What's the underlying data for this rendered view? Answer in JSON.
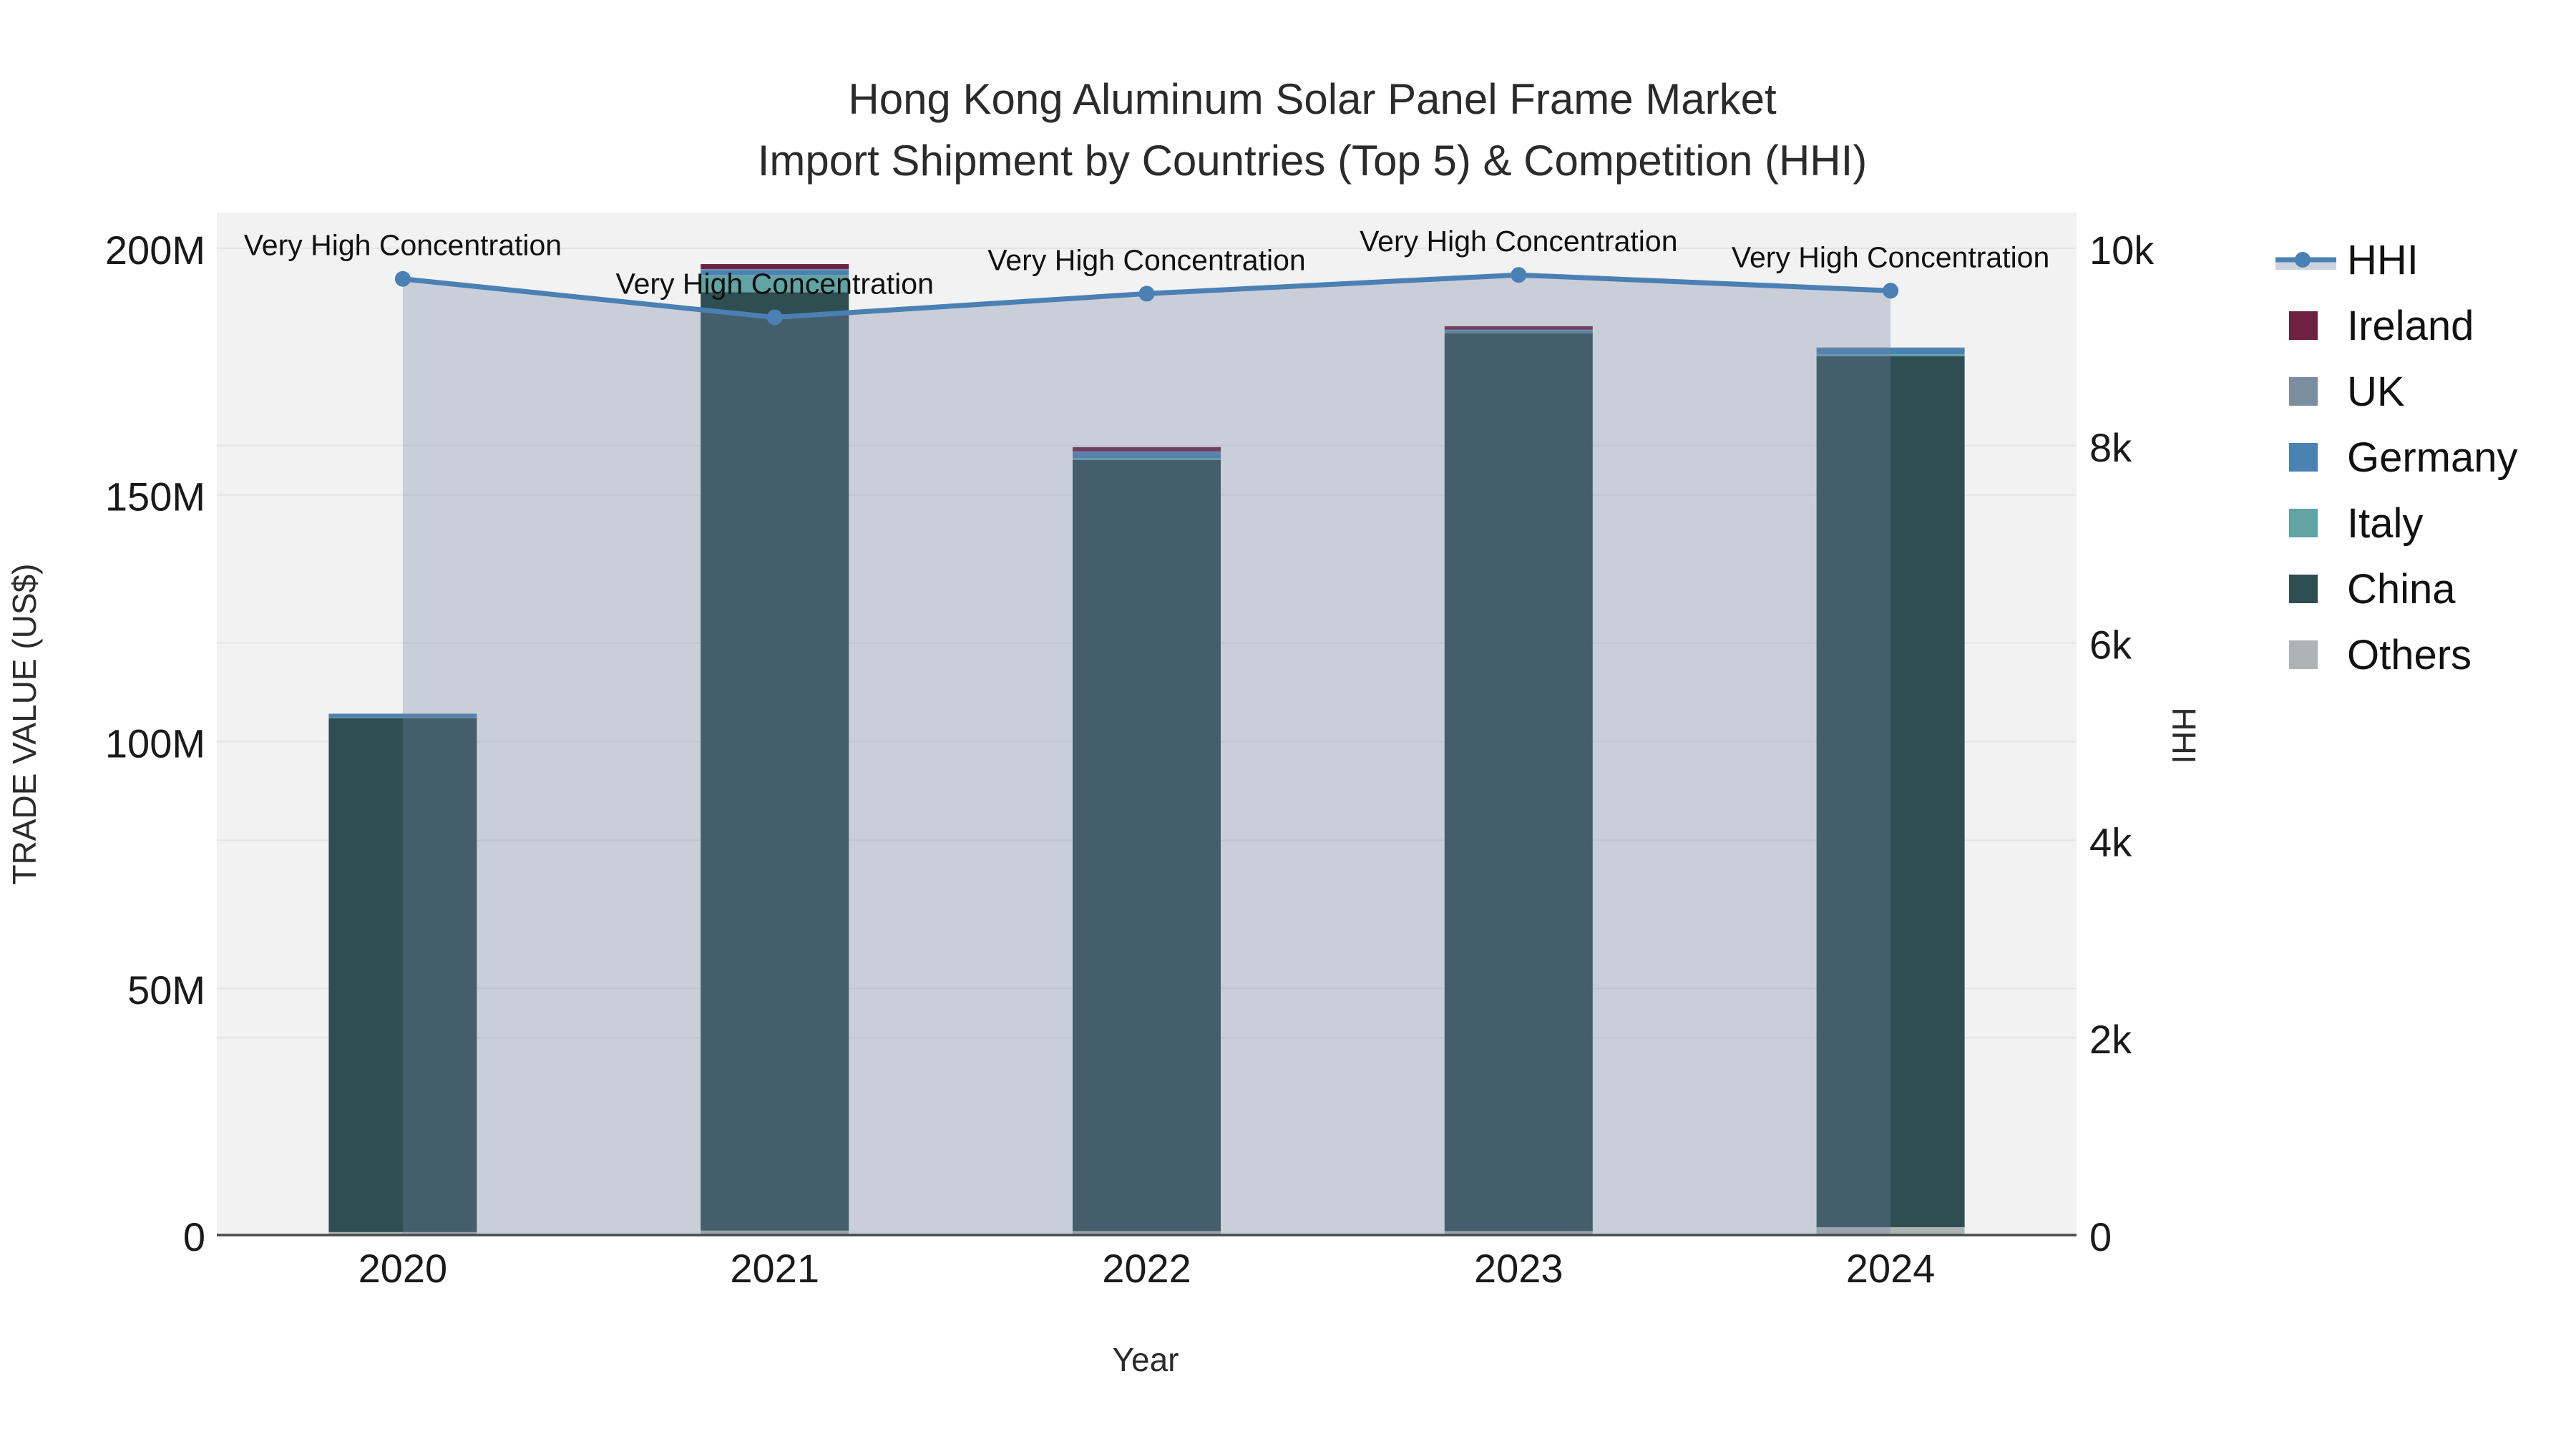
{
  "title": {
    "line1": "Hong Kong Aluminum Solar Panel Frame Market",
    "line2": "Import Shipment by Countries (Top 5) & Competition (HHI)"
  },
  "axes": {
    "left_title": "TRADE VALUE (US$)",
    "right_title": "HHI",
    "x_title": "Year",
    "yticks_left": [
      {
        "label": "0",
        "value": 0
      },
      {
        "label": "50M",
        "value": 50
      },
      {
        "label": "100M",
        "value": 100
      },
      {
        "label": "150M",
        "value": 150
      },
      {
        "label": "200M",
        "value": 200
      }
    ],
    "yticks_right": [
      {
        "label": "0",
        "value": 0
      },
      {
        "label": "2k",
        "value": 2000
      },
      {
        "label": "4k",
        "value": 4000
      },
      {
        "label": "6k",
        "value": 6000
      },
      {
        "label": "8k",
        "value": 8000
      },
      {
        "label": "10k",
        "value": 10000
      }
    ]
  },
  "legend": {
    "items": [
      {
        "label": "HHI",
        "type": "line",
        "color": "#4a80b4",
        "band": "#ccd3dd"
      },
      {
        "label": "Ireland",
        "type": "swatch",
        "color": "#6e2243"
      },
      {
        "label": "UK",
        "type": "swatch",
        "color": "#7d8da0"
      },
      {
        "label": "Germany",
        "type": "swatch",
        "color": "#4a82b4"
      },
      {
        "label": "Italy",
        "type": "swatch",
        "color": "#62a3a3"
      },
      {
        "label": "China",
        "type": "swatch",
        "color": "#2f4e52"
      },
      {
        "label": "Others",
        "type": "swatch",
        "color": "#aeb4b4"
      }
    ]
  },
  "chart_data": {
    "type": "combo stacked-bar + line (secondary axis)",
    "categories": [
      "2020",
      "2021",
      "2022",
      "2023",
      "2024"
    ],
    "bar_unit": "Trade value, millions US$",
    "bar_stack_order_bottom_to_top": [
      "Others",
      "China",
      "Italy",
      "Germany",
      "UK",
      "Ireland"
    ],
    "series": [
      {
        "name": "Others",
        "color": "#aeb4b4",
        "values": [
          0.6,
          0.9,
          0.8,
          0.8,
          1.6
        ]
      },
      {
        "name": "China",
        "color": "#2f4e52",
        "values": [
          104.2,
          190.2,
          156.3,
          182.0,
          176.5
        ]
      },
      {
        "name": "Italy",
        "color": "#62a3a3",
        "values": [
          0.1,
          3.5,
          0.4,
          0.1,
          0.4
        ]
      },
      {
        "name": "Germany",
        "color": "#4a82b4",
        "values": [
          0.7,
          1.0,
          1.2,
          0.4,
          1.3
        ]
      },
      {
        "name": "UK",
        "color": "#7d8da0",
        "values": [
          0.1,
          0.2,
          0.1,
          0.2,
          0.1
        ]
      },
      {
        "name": "Ireland",
        "color": "#6e2243",
        "values": [
          0.0,
          1.0,
          0.9,
          0.7,
          0.0
        ]
      }
    ],
    "bar_totals": [
      105.7,
      196.8,
      159.7,
      184.2,
      179.9
    ],
    "line_series": {
      "name": "HHI",
      "axis": "right",
      "color": "#4a80b4",
      "area_fill": "rgba(114,130,161,0.32)",
      "values": [
        9690,
        9300,
        9540,
        9730,
        9570
      ]
    },
    "annotations": [
      "Very High Concentration",
      "Very High Concentration",
      "Very High Concentration",
      "Very High Concentration",
      "Very High Concentration"
    ],
    "ylim_left": [
      0,
      207.25
    ],
    "ylim_right": [
      0,
      10362.5
    ],
    "grid": true,
    "legend_position": "right",
    "plot_background": "#f2f2f2",
    "gridline_color": "#e3e4e6",
    "axisline_color": "#4a4a4a",
    "tick_color": "#1a1a1a",
    "annotation_color": "#111111"
  }
}
